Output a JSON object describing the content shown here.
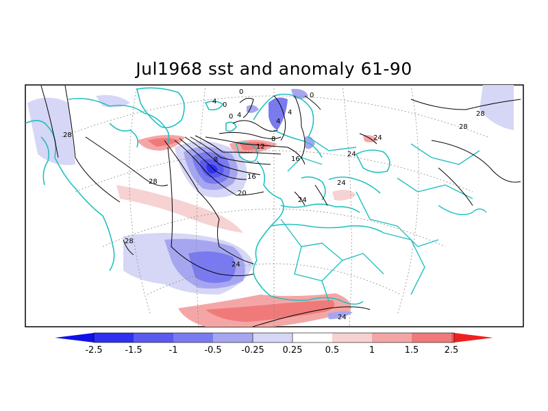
{
  "title": "Jul1968 sst and anomaly 61-90",
  "colors": {
    "coast": "#22c0c0",
    "contour": "#000000",
    "neg": [
      "#3030f0",
      "#5a5af0",
      "#7a7af0",
      "#a6a6f0",
      "#d6d6f6"
    ],
    "pos": [
      "#f6d2d2",
      "#f4a6a6",
      "#f07a7a",
      "#f05858",
      "#f03030"
    ]
  },
  "contour_labels": [
    "0",
    "4",
    "0",
    "4",
    "0",
    "0",
    "4",
    "4",
    "8",
    "12",
    "8",
    "16",
    "16",
    "20",
    "24",
    "24",
    "24",
    "24",
    "24",
    "28",
    "28",
    "28",
    "28",
    "28",
    "24"
  ],
  "colorbar": {
    "ticks": [
      "-2.5",
      "-1.5",
      "-1",
      "-0.5",
      "-0.25",
      "0.25",
      "0.5",
      "1",
      "1.5",
      "2.5"
    ]
  }
}
